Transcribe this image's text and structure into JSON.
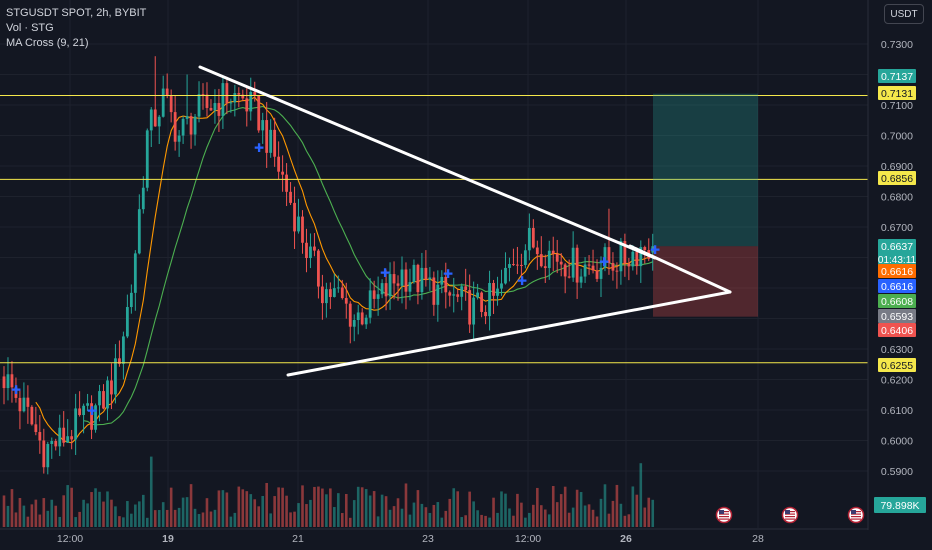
{
  "legend": {
    "title": "STGUSDT SPOT, 2h, BYBIT",
    "vol": "Vol · STG",
    "ma": "MA Cross (9, 21)"
  },
  "currency": "USDT",
  "colors": {
    "background": "#131722",
    "grid": "#1e222d",
    "up": "#26a69a",
    "down": "#ef5350",
    "ma_fast": "#ff9800",
    "ma_slow": "#4caf50",
    "hline": "#f5e84b",
    "trendline": "#ffffff",
    "cross_marker": "#2962ff"
  },
  "chart_data": {
    "type": "candlestick",
    "symbol": "STGUSDT",
    "timeframe": "2h",
    "ylim": [
      0.577,
      0.741
    ],
    "y_ticks": [
      "0.7300",
      "0.7200",
      "0.7100",
      "0.7000",
      "0.6900",
      "0.6800",
      "0.6700",
      "0.6600",
      "0.6500",
      "0.6400",
      "0.6300",
      "0.6200",
      "0.6100",
      "0.6000",
      "0.5900"
    ],
    "x_ticks": [
      "12:00",
      "19",
      "21",
      "23",
      "12:00",
      "26",
      "28"
    ],
    "price_tags": [
      {
        "label": "0.7137",
        "color": "#26a69a",
        "text_color": "#ffffff"
      },
      {
        "label": "0.7131",
        "color": "#f5e84b",
        "text_color": "#131722"
      },
      {
        "label": "0.6856",
        "color": "#f5e84b",
        "text_color": "#131722"
      },
      {
        "label": "0.6637",
        "sub": "01:43:11",
        "color": "#26a69a",
        "text_color": "#ffffff"
      },
      {
        "label": "0.6616",
        "color": "#ff6d00",
        "text_color": "#ffffff"
      },
      {
        "label": "0.6616",
        "color": "#2962ff",
        "text_color": "#ffffff"
      },
      {
        "label": "0.6608",
        "color": "#4caf50",
        "text_color": "#ffffff"
      },
      {
        "label": "0.6593",
        "color": "#787b86",
        "text_color": "#ffffff"
      },
      {
        "label": "0.6406",
        "color": "#ef5350",
        "text_color": "#ffffff"
      },
      {
        "label": "0.6255",
        "color": "#f5e84b",
        "text_color": "#131722"
      }
    ],
    "volume_tag": "79.898K",
    "horizontal_lines": [
      0.7131,
      0.6856,
      0.6255
    ],
    "trendlines": [
      {
        "from": [
          0.722,
          "Jun 19"
        ],
        "to": [
          0.663,
          "Jun 25"
        ],
        "p1": [
          0.722,
          0.218
        ],
        "p2": [
          0.66,
          0.685
        ]
      },
      {
        "from": [
          0.6245,
          "Jun 20"
        ],
        "to": [
          0.648,
          "Jun 26"
        ],
        "p1": [
          0.6245,
          0.308
        ],
        "p2": [
          0.648,
          0.785
        ]
      },
      {
        "p1": [
          0.663,
          0.685
        ],
        "p2": [
          0.648,
          0.785
        ]
      }
    ],
    "position": {
      "entry": 0.6637,
      "target": 0.7137,
      "stop": 0.6406
    }
  }
}
